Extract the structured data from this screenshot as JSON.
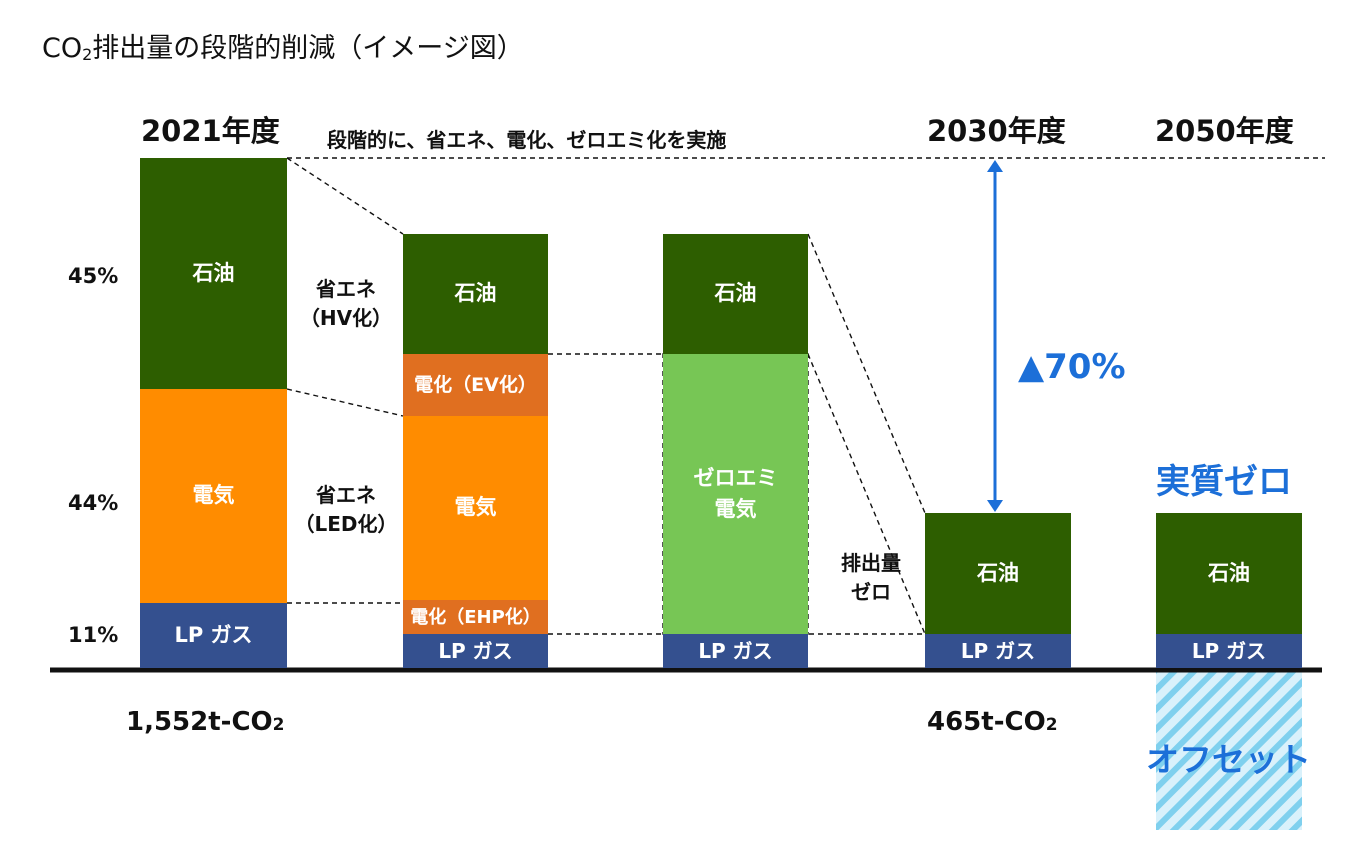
{
  "title": {
    "main": "CO",
    "subscript": "2",
    "rest": "排出量の段階的削減（イメージ図）"
  },
  "colors": {
    "oil": "#2d5e00",
    "electricity": "#ff8c00",
    "lpgas": "#34508f",
    "electrification": "#e06f20",
    "zeroemi": "#77c655",
    "accent_blue": "#1c6fd8",
    "offset_hatch": "#7fd0ee"
  },
  "labels": {
    "year_2021": "2021年度",
    "year_2030": "2030年度",
    "year_2050": "2050年度",
    "stepwise_note": "段階的に、省エネ、電化、ゼロエミ化を実施",
    "pct_oil": "45%",
    "pct_elec": "44%",
    "pct_lp": "11%",
    "energy_saving_hv_1": "省エネ",
    "energy_saving_hv_2": "（HV化）",
    "energy_saving_led_1": "省エネ",
    "energy_saving_led_2": "（LED化）",
    "zero_emission_1": "排出量",
    "zero_emission_2": "ゼロ",
    "reduction": "▲70%",
    "net_zero": "実質ゼロ",
    "offset": "オフセット",
    "total_2021": "1,552t-CO",
    "total_2021_sub": "2",
    "total_2030": "465t-CO",
    "total_2030_sub": "2"
  },
  "chart_data": {
    "type": "bar",
    "stacked": true,
    "categories": [
      "2021年度",
      "",
      "",
      "2030年度",
      "2050年度"
    ],
    "segment_order": [
      "LP ガス",
      "電化（EHP化）",
      "電気",
      "電化（EV化）",
      "石油"
    ],
    "bars": [
      {
        "segments": [
          {
            "label": "LP ガス",
            "value": 11,
            "color": "#34508f"
          },
          {
            "label": "電気",
            "value": 44,
            "color": "#ff8c00"
          },
          {
            "label": "石油",
            "value": 45,
            "color": "#2d5e00"
          }
        ]
      },
      {
        "segments": [
          {
            "label": "LP ガス",
            "value": 6,
            "color": "#34508f"
          },
          {
            "label": "電化（EHP化）",
            "value": 6,
            "color": "#e06f20"
          },
          {
            "label": "電気",
            "value": 36,
            "color": "#ff8c00"
          },
          {
            "label": "電化（EV化）",
            "value": 12,
            "color": "#e06f20"
          },
          {
            "label": "石油",
            "value": 24,
            "color": "#2d5e00"
          }
        ]
      },
      {
        "segments": [
          {
            "label": "LP ガス",
            "value": 6,
            "color": "#34508f"
          },
          {
            "label": "ゼロエミ\n電気",
            "value": 55,
            "color": "#77c655"
          },
          {
            "label": "石油",
            "value": 23,
            "color": "#2d5e00"
          }
        ]
      },
      {
        "segments": [
          {
            "label": "LP ガス",
            "value": 6,
            "color": "#34508f"
          },
          {
            "label": "石油",
            "value": 24,
            "color": "#2d5e00"
          }
        ]
      },
      {
        "segments": [
          {
            "label": "LP ガス",
            "value": 6,
            "color": "#34508f"
          },
          {
            "label": "石油",
            "value": 24,
            "color": "#2d5e00"
          }
        ]
      }
    ],
    "offset_2050": {
      "label": "オフセット",
      "value": 30
    },
    "reduction_label": "▲70%",
    "ylim": [
      0,
      100
    ]
  }
}
